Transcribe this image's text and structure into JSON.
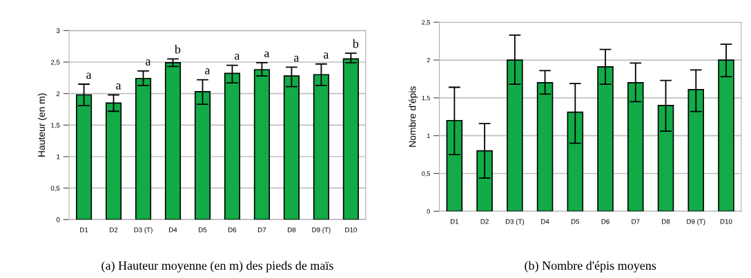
{
  "chart_data": [
    {
      "type": "bar",
      "title": "(a) Hauteur moyenne (en m) des pieds de maïs",
      "ylabel": "Hauteur (en m)",
      "categories": [
        "D1",
        "D2",
        "D3 (T)",
        "D4",
        "D5",
        "D6",
        "D7",
        "D8",
        "D9 (T)",
        "D10"
      ],
      "series": [
        {
          "color": "#12ab48",
          "values": [
            1.98,
            1.85,
            2.24,
            2.49,
            2.03,
            2.32,
            2.38,
            2.28,
            2.3,
            2.55
          ],
          "errors": [
            [
              1.81,
              2.15
            ],
            [
              1.72,
              1.98
            ],
            [
              2.13,
              2.36
            ],
            [
              2.43,
              2.55
            ],
            [
              1.83,
              2.22
            ],
            [
              2.17,
              2.45
            ],
            [
              2.28,
              2.49
            ],
            [
              2.11,
              2.42
            ],
            [
              2.13,
              2.47
            ],
            [
              2.49,
              2.64
            ]
          ]
        }
      ],
      "ylim": [
        0,
        3
      ],
      "yticks": [
        0,
        {
          "value": 0.5,
          "label": "0,5"
        },
        1,
        {
          "value": 1.5,
          "label": "1,5"
        },
        2,
        {
          "value": 2.5,
          "label": "2,5"
        },
        3
      ],
      "grid": "y",
      "annotations": [
        {
          "text": "a",
          "x": "D1",
          "y": 2.15
        },
        {
          "text": "a",
          "x": "D2",
          "y": 1.98
        },
        {
          "text": "a",
          "x": "D3 (T)",
          "y": 2.36
        },
        {
          "text": "b",
          "x": "D4",
          "y": 2.55
        },
        {
          "text": "a",
          "x": "D5",
          "y": 2.22
        },
        {
          "text": "a",
          "x": "D6",
          "y": 2.45
        },
        {
          "text": "a",
          "x": "D7",
          "y": 2.49
        },
        {
          "text": "a",
          "x": "D8",
          "y": 2.42
        },
        {
          "text": "a",
          "x": "D9 (T)",
          "y": 2.47
        },
        {
          "text": "b",
          "x": "D10",
          "y": 2.64
        }
      ]
    },
    {
      "type": "bar",
      "title": "(b) Nombre d'épis moyens",
      "ylabel": "Nombre d'épis",
      "categories": [
        "D1",
        "D2",
        "D3 (T)",
        "D4",
        "D5",
        "D6",
        "D7",
        "D8",
        "D9 (T)",
        "D10"
      ],
      "series": [
        {
          "color": "#12ab48",
          "values": [
            1.2,
            0.8,
            2.0,
            1.7,
            1.31,
            1.91,
            1.7,
            1.4,
            1.61,
            2.0
          ],
          "errors": [
            [
              0.75,
              1.64
            ],
            [
              0.44,
              1.16
            ],
            [
              1.68,
              2.33
            ],
            [
              1.55,
              1.86
            ],
            [
              0.9,
              1.69
            ],
            [
              1.68,
              2.14
            ],
            [
              1.45,
              1.96
            ],
            [
              1.06,
              1.73
            ],
            [
              1.32,
              1.87
            ],
            [
              1.78,
              2.21
            ]
          ]
        }
      ],
      "ylim": [
        0,
        2.5
      ],
      "yticks": [
        0,
        {
          "value": 0.5,
          "label": "0,5"
        },
        1,
        {
          "value": 1.5,
          "label": "1,5"
        },
        2,
        {
          "value": 2.5,
          "label": "2,5"
        }
      ],
      "grid": "y"
    }
  ]
}
